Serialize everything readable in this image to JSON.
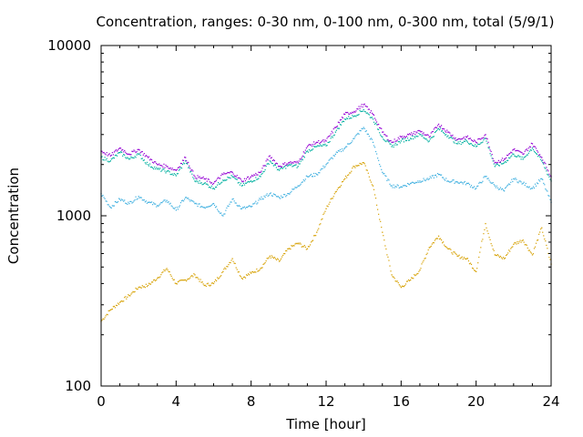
{
  "chart_data": {
    "type": "scatter",
    "title": "Concentration, ranges: 0-30 nm, 0-100 nm, 0-300 nm, total (5/9/1)",
    "xlabel": "Time [hour]",
    "ylabel": "Concentration",
    "xlim": [
      0,
      24
    ],
    "ylim": [
      100,
      10000
    ],
    "yscale": "log",
    "xticks": [
      0,
      4,
      8,
      12,
      16,
      20,
      24
    ],
    "xtick_labels": [
      "0",
      "4",
      "8",
      "12",
      "16",
      "20",
      "24"
    ],
    "yticks": [
      100,
      1000,
      10000
    ],
    "ytick_labels": [
      "100",
      "1000",
      "10000"
    ],
    "grid": false,
    "legend": "none",
    "series": [
      {
        "color": "#d6a000",
        "x": [
          0.0,
          0.5,
          1.0,
          1.5,
          2.0,
          2.5,
          3.0,
          3.5,
          4.0,
          4.5,
          5.0,
          5.5,
          6.0,
          6.5,
          7.0,
          7.5,
          8.0,
          8.5,
          9.0,
          9.5,
          10.0,
          10.5,
          11.0,
          11.5,
          12.0,
          12.5,
          13.0,
          13.5,
          14.0,
          14.5,
          15.0,
          15.5,
          16.0,
          16.5,
          17.0,
          17.5,
          18.0,
          18.5,
          19.0,
          19.5,
          20.0,
          20.5,
          21.0,
          21.5,
          22.0,
          22.5,
          23.0,
          23.5,
          24.0
        ],
        "y": [
          240,
          280,
          310,
          340,
          380,
          390,
          430,
          490,
          400,
          420,
          450,
          390,
          400,
          470,
          560,
          430,
          460,
          490,
          580,
          540,
          640,
          690,
          640,
          800,
          1100,
          1380,
          1650,
          1950,
          2050,
          1500,
          800,
          450,
          380,
          420,
          480,
          650,
          760,
          640,
          580,
          560,
          470,
          900,
          590,
          560,
          680,
          720,
          590,
          850,
          520
        ]
      },
      {
        "color": "#40b0e0",
        "x": [
          0.0,
          0.5,
          1.0,
          1.5,
          2.0,
          2.5,
          3.0,
          3.5,
          4.0,
          4.5,
          5.0,
          5.5,
          6.0,
          6.5,
          7.0,
          7.5,
          8.0,
          8.5,
          9.0,
          9.5,
          10.0,
          10.5,
          11.0,
          11.5,
          12.0,
          12.5,
          13.0,
          13.5,
          14.0,
          14.5,
          15.0,
          15.5,
          16.0,
          16.5,
          17.0,
          17.5,
          18.0,
          18.5,
          19.0,
          19.5,
          20.0,
          20.5,
          21.0,
          21.5,
          22.0,
          22.5,
          23.0,
          23.5,
          24.0
        ],
        "y": [
          1350,
          1120,
          1250,
          1180,
          1300,
          1200,
          1150,
          1230,
          1080,
          1280,
          1180,
          1120,
          1180,
          1000,
          1250,
          1100,
          1130,
          1250,
          1350,
          1280,
          1350,
          1500,
          1700,
          1750,
          2000,
          2300,
          2500,
          2850,
          3300,
          2700,
          1800,
          1500,
          1480,
          1550,
          1600,
          1650,
          1750,
          1600,
          1580,
          1550,
          1450,
          1700,
          1500,
          1400,
          1650,
          1550,
          1450,
          1650,
          1200
        ]
      },
      {
        "color": "#00b0a0",
        "x": [
          0.0,
          0.5,
          1.0,
          1.5,
          2.0,
          2.5,
          3.0,
          3.5,
          4.0,
          4.5,
          5.0,
          5.5,
          6.0,
          6.5,
          7.0,
          7.5,
          8.0,
          8.5,
          9.0,
          9.5,
          10.0,
          10.5,
          11.0,
          11.5,
          12.0,
          12.5,
          13.0,
          13.5,
          14.0,
          14.5,
          15.0,
          15.5,
          16.0,
          16.5,
          17.0,
          17.5,
          18.0,
          18.5,
          19.0,
          19.5,
          20.0,
          20.5,
          21.0,
          21.5,
          22.0,
          22.5,
          23.0,
          23.5,
          24.0
        ],
        "y": [
          2200,
          2100,
          2350,
          2150,
          2300,
          2000,
          1880,
          1820,
          1720,
          2100,
          1600,
          1550,
          1450,
          1620,
          1700,
          1500,
          1600,
          1700,
          2100,
          1850,
          1980,
          1950,
          2400,
          2550,
          2580,
          3100,
          3700,
          3850,
          4200,
          3700,
          2900,
          2550,
          2750,
          2850,
          3000,
          2750,
          3250,
          2950,
          2650,
          2750,
          2550,
          2850,
          1950,
          2050,
          2300,
          2150,
          2500,
          2100,
          1600
        ]
      },
      {
        "color": "#9400d3",
        "x": [
          0.0,
          0.5,
          1.0,
          1.5,
          2.0,
          2.5,
          3.0,
          3.5,
          4.0,
          4.5,
          5.0,
          5.5,
          6.0,
          6.5,
          7.0,
          7.5,
          8.0,
          8.5,
          9.0,
          9.5,
          10.0,
          10.5,
          11.0,
          11.5,
          12.0,
          12.5,
          13.0,
          13.5,
          14.0,
          14.5,
          15.0,
          15.5,
          16.0,
          16.5,
          17.0,
          17.5,
          18.0,
          18.5,
          19.0,
          19.5,
          20.0,
          20.5,
          21.0,
          21.5,
          22.0,
          22.5,
          23.0,
          23.5,
          24.0
        ],
        "y": [
          2400,
          2250,
          2500,
          2300,
          2450,
          2200,
          2000,
          1950,
          1850,
          2200,
          1700,
          1650,
          1550,
          1750,
          1800,
          1600,
          1700,
          1800,
          2250,
          1950,
          2050,
          2050,
          2550,
          2700,
          2750,
          3300,
          3950,
          4100,
          4500,
          3950,
          3100,
          2700,
          2900,
          3000,
          3150,
          2900,
          3450,
          3100,
          2800,
          2900,
          2700,
          3000,
          2050,
          2150,
          2450,
          2300,
          2650,
          2200,
          1700
        ]
      }
    ]
  }
}
